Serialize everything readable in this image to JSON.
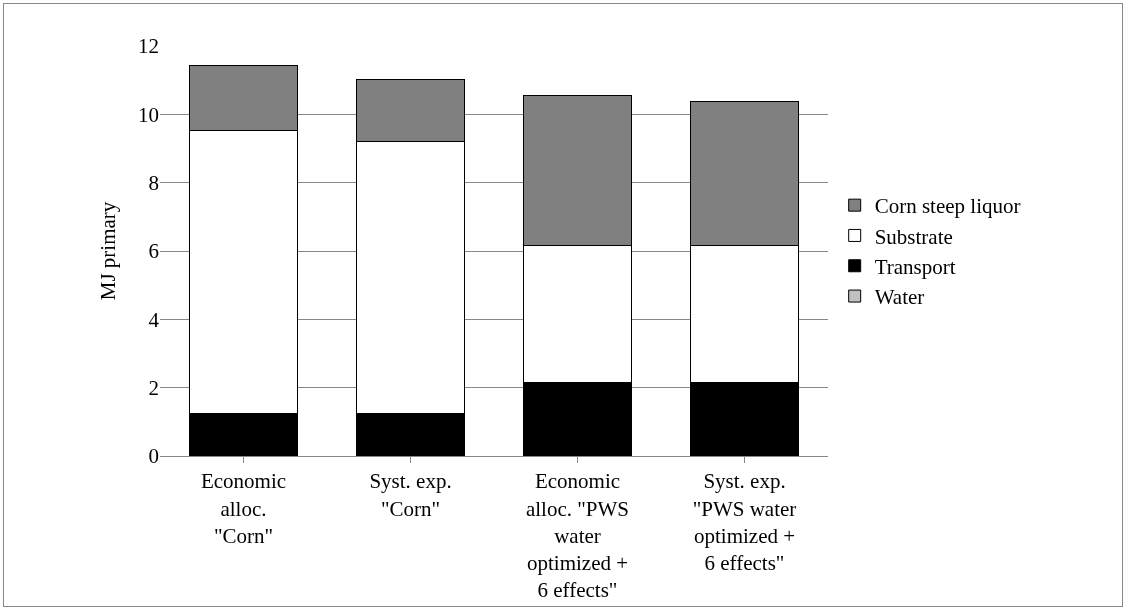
{
  "chart_data": {
    "type": "bar",
    "stacked": true,
    "ylabel": "MJ primary",
    "categories": [
      "Economic alloc. \"Corn\"",
      "Syst. exp. \"Corn\"",
      "Economic alloc. \"PWS water optimized + 6 effects\"",
      "Syst. exp. \"PWS water optimized + 6 effects\""
    ],
    "series": [
      {
        "name": "Water",
        "color": "#c0c0c0",
        "values": [
          0.02,
          0.02,
          0.02,
          0.02
        ]
      },
      {
        "name": "Transport",
        "color": "#000000",
        "values": [
          1.21,
          1.21,
          2.12,
          2.12
        ]
      },
      {
        "name": "Substrate",
        "color": "#ffffff",
        "values": [
          8.3,
          7.98,
          4.02,
          4.02
        ]
      },
      {
        "name": "Corn steep liquor",
        "color": "#808080",
        "values": [
          1.9,
          1.82,
          4.38,
          4.21
        ]
      }
    ],
    "ylim": [
      0,
      12
    ],
    "yticks": [
      0,
      2,
      4,
      6,
      8,
      10,
      12
    ],
    "grid": "y",
    "legend": "right"
  }
}
